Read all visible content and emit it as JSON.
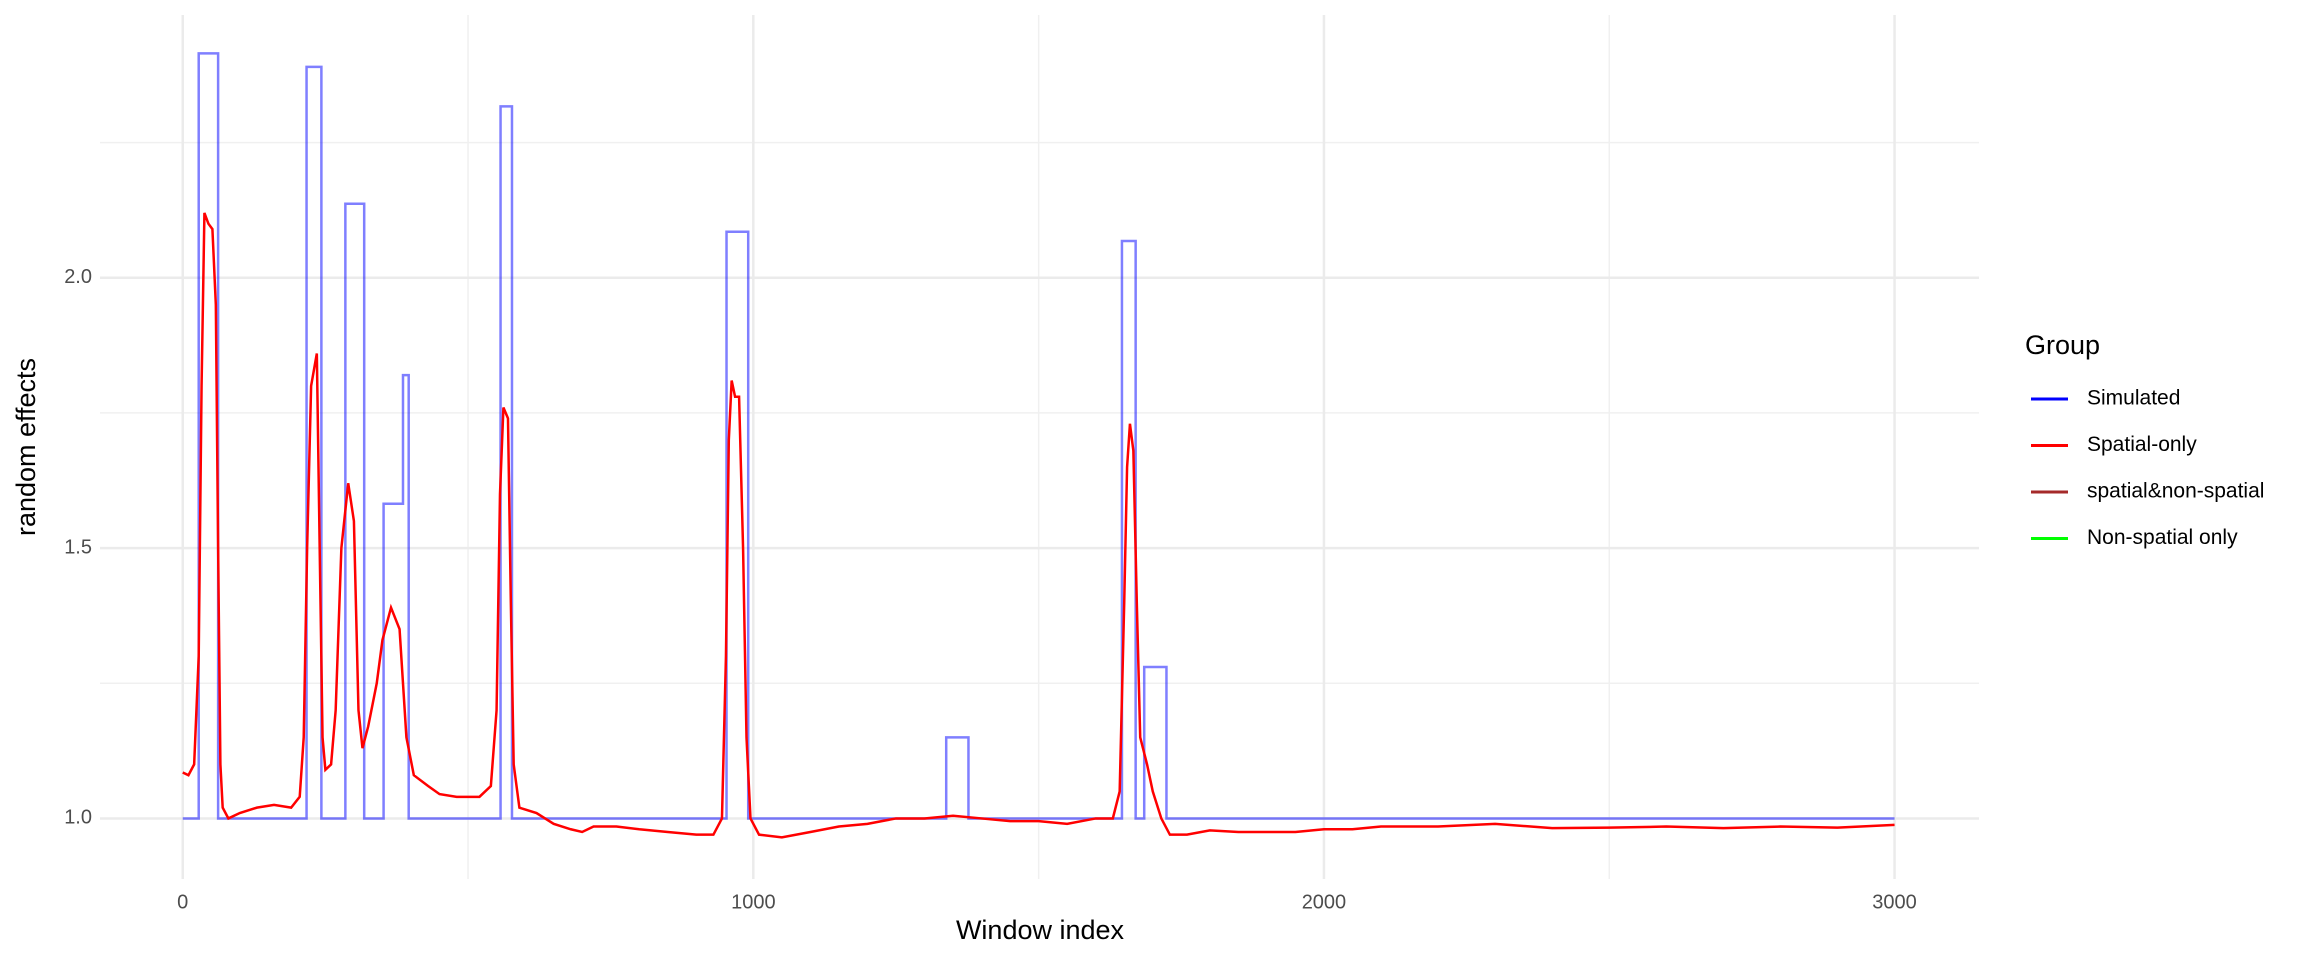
{
  "chart_data": {
    "type": "line",
    "x_label": "Window index",
    "y_label": "random effects",
    "legend_title": "Group",
    "legend_position": "right",
    "grid": true,
    "xlim": [
      -145,
      3148
    ],
    "ylim": [
      0.888,
      2.486
    ],
    "xticks": [
      0,
      1000,
      2000,
      3000
    ],
    "xminor": [
      500,
      1500,
      2500
    ],
    "yticks": [
      {
        "value": 1,
        "label": "1.0"
      },
      {
        "value": 1.5,
        "label": "1.5"
      },
      {
        "value": 2,
        "label": "2.0"
      }
    ],
    "yminor": [
      1.25,
      1.75,
      2.25
    ],
    "series": [
      {
        "name": "Simulated",
        "color": "#0000ff",
        "opacity": 0.5,
        "x": [
          0,
          28,
          28,
          62,
          62,
          217,
          217,
          243,
          243,
          285,
          285,
          318,
          318,
          352,
          352,
          386,
          386,
          396,
          396,
          557,
          557,
          577,
          577,
          953,
          953,
          991,
          991,
          1338,
          1338,
          1377,
          1377,
          1646,
          1646,
          1670,
          1670,
          1685,
          1685,
          1724,
          1724,
          3000
        ],
        "values": [
          1,
          1,
          2.415,
          2.415,
          1,
          1,
          2.39,
          2.39,
          1,
          1,
          2.137,
          2.137,
          1,
          1,
          1.582,
          1.582,
          1.82,
          1.82,
          1,
          1,
          2.317,
          2.317,
          1,
          1,
          2.085,
          2.085,
          1,
          1,
          1.15,
          1.15,
          1,
          1,
          2.068,
          2.068,
          1,
          1,
          1.28,
          1.28,
          1,
          1
        ]
      },
      {
        "name": "Spatial-only",
        "color": "#ff0000",
        "opacity": 1,
        "x": [
          0,
          10,
          20,
          28,
          33,
          38,
          45,
          52,
          58,
          62,
          66,
          70,
          80,
          100,
          130,
          160,
          190,
          205,
          212,
          218,
          225,
          235,
          240,
          245,
          250,
          260,
          268,
          278,
          290,
          300,
          308,
          315,
          325,
          340,
          350,
          365,
          380,
          392,
          405,
          430,
          450,
          480,
          520,
          540,
          550,
          556,
          562,
          570,
          575,
          580,
          590,
          620,
          650,
          680,
          700,
          720,
          760,
          800,
          850,
          900,
          930,
          945,
          952,
          957,
          962,
          968,
          975,
          982,
          988,
          995,
          1010,
          1050,
          1100,
          1150,
          1200,
          1250,
          1300,
          1350,
          1400,
          1450,
          1500,
          1550,
          1600,
          1630,
          1642,
          1650,
          1655,
          1660,
          1666,
          1672,
          1678,
          1690,
          1700,
          1715,
          1730,
          1760,
          1800,
          1850,
          1900,
          1950,
          2000,
          2050,
          2100,
          2200,
          2300,
          2400,
          2500,
          2600,
          2700,
          2800,
          2900,
          3000
        ],
        "values": [
          1.085,
          1.08,
          1.1,
          1.3,
          1.8,
          2.12,
          2.1,
          2.09,
          1.95,
          1.5,
          1.1,
          1.02,
          1.0,
          1.01,
          1.02,
          1.025,
          1.02,
          1.04,
          1.15,
          1.5,
          1.8,
          1.86,
          1.5,
          1.15,
          1.09,
          1.1,
          1.2,
          1.5,
          1.62,
          1.55,
          1.2,
          1.13,
          1.17,
          1.25,
          1.33,
          1.39,
          1.35,
          1.15,
          1.08,
          1.06,
          1.045,
          1.04,
          1.04,
          1.06,
          1.2,
          1.6,
          1.76,
          1.74,
          1.4,
          1.1,
          1.02,
          1.01,
          0.99,
          0.98,
          0.975,
          0.985,
          0.985,
          0.98,
          0.975,
          0.97,
          0.97,
          1.0,
          1.3,
          1.7,
          1.81,
          1.78,
          1.78,
          1.5,
          1.15,
          1.0,
          0.97,
          0.965,
          0.975,
          0.985,
          0.99,
          1.0,
          1.0,
          1.005,
          1.0,
          0.995,
          0.995,
          0.99,
          1.0,
          1.0,
          1.05,
          1.4,
          1.65,
          1.73,
          1.68,
          1.4,
          1.15,
          1.1,
          1.05,
          1.0,
          0.97,
          0.97,
          0.978,
          0.975,
          0.975,
          0.975,
          0.98,
          0.98,
          0.985,
          0.985,
          0.99,
          0.982,
          0.983,
          0.985,
          0.982,
          0.985,
          0.983,
          0.988
        ]
      },
      {
        "name": "spatial&non-spatial",
        "color": "#a52a2a",
        "opacity": 1,
        "x": [],
        "values": []
      },
      {
        "name": "Non-spatial only",
        "color": "#00ff00",
        "opacity": 1,
        "x": [],
        "values": []
      }
    ]
  }
}
